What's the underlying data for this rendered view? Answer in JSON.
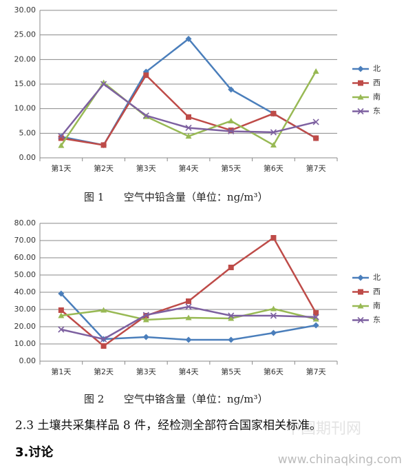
{
  "chart_data": [
    {
      "type": "line",
      "title": "图 1      空气中铅含量（单位：ng/m³）",
      "categories": [
        "第1天",
        "第2天",
        "第3天",
        "第4天",
        "第5天",
        "第6天",
        "第7天"
      ],
      "ylim": [
        0,
        30
      ],
      "yticks": [
        {
          "value": 0,
          "label": "0.00"
        },
        {
          "value": 5,
          "label": "5.00"
        },
        {
          "value": 10,
          "label": "10.00"
        },
        {
          "value": 15,
          "label": "15.00"
        },
        {
          "value": 20,
          "label": "20.00"
        },
        {
          "value": 25,
          "label": "25.00"
        },
        {
          "value": 30,
          "label": "30.00"
        }
      ],
      "grid": true,
      "legend": "right",
      "series": [
        {
          "name": "北",
          "color": "#4a7ebb",
          "marker": "diamond",
          "values": [
            4.3,
            2.6,
            17.5,
            24.2,
            13.9,
            9.0,
            4.0
          ]
        },
        {
          "name": "西",
          "color": "#be4b48",
          "marker": "square",
          "values": [
            4.0,
            2.6,
            16.8,
            8.3,
            5.6,
            9.0,
            4.0
          ]
        },
        {
          "name": "南",
          "color": "#98b954",
          "marker": "triangle",
          "values": [
            2.5,
            15.3,
            8.4,
            4.4,
            7.5,
            2.6,
            17.6
          ]
        },
        {
          "name": "东",
          "color": "#7d60a0",
          "marker": "x",
          "values": [
            4.4,
            15.0,
            8.6,
            6.1,
            5.4,
            5.2,
            7.3
          ]
        }
      ]
    },
    {
      "type": "line",
      "title": "图 2      空气中铬含量（单位：ng/m³）",
      "categories": [
        "第1天",
        "第2天",
        "第3天",
        "第4天",
        "第5天",
        "第6天",
        "第7天"
      ],
      "ylim": [
        0,
        80
      ],
      "yticks": [
        {
          "value": 0,
          "label": "0.00"
        },
        {
          "value": 10,
          "label": "10.00"
        },
        {
          "value": 20,
          "label": "20.00"
        },
        {
          "value": 30,
          "label": "30.00"
        },
        {
          "value": 40,
          "label": "40.00"
        },
        {
          "value": 50,
          "label": "50.00"
        },
        {
          "value": 60,
          "label": "60.00"
        },
        {
          "value": 70,
          "label": "70.00"
        },
        {
          "value": 80,
          "label": "80.00"
        }
      ],
      "grid": true,
      "legend": "right",
      "series": [
        {
          "name": "北",
          "color": "#4a7ebb",
          "marker": "diamond",
          "values": [
            39.2,
            12.8,
            14.0,
            12.4,
            12.4,
            16.4,
            20.8
          ]
        },
        {
          "name": "西",
          "color": "#be4b48",
          "marker": "square",
          "values": [
            29.6,
            8.8,
            26.4,
            34.8,
            54.4,
            71.6,
            28.0
          ]
        },
        {
          "name": "南",
          "color": "#98b954",
          "marker": "triangle",
          "values": [
            26.4,
            29.6,
            24.0,
            25.2,
            24.8,
            30.4,
            24.4
          ]
        },
        {
          "name": "东",
          "color": "#7d60a0",
          "marker": "x",
          "values": [
            18.4,
            12.8,
            26.8,
            31.6,
            26.4,
            26.4,
            25.6
          ]
        }
      ]
    }
  ],
  "body": {
    "paragraph": "2.3 土壤共采集样品 8 件，经检测全部符合国家相关标准。",
    "heading": "3.讨论"
  },
  "watermark": {
    "url": "www.chinaqking.com",
    "cn": "中国期刊网"
  }
}
